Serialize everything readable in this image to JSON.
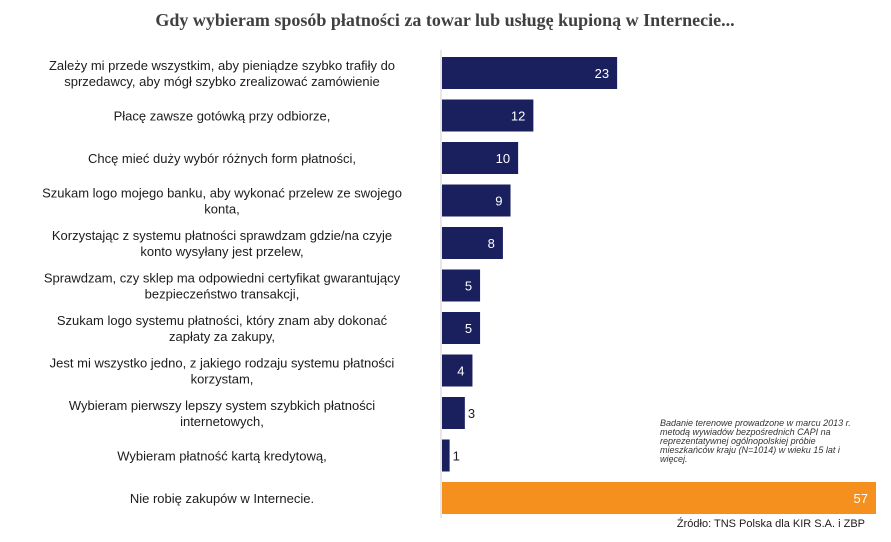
{
  "colors": {
    "primary": "#1a1f5e",
    "highlight": "#f5901e"
  },
  "note": "Badanie terenowe prowadzone w marcu 2013 r. metodą wywiadów bezpośrednich CAPI na reprezentatywnej ogólnopolskiej próbie mieszkańców kraju (N=1014) w wieku 15 lat i więcej.",
  "source": "Źródło: TNS Polska dla KIR S.A. i ZBP",
  "chart_data": {
    "type": "bar",
    "orientation": "horizontal",
    "title": "Gdy wybieram sposób płatności za towar lub usługę kupioną w Internecie...",
    "xlim": [
      0,
      57
    ],
    "grid": false,
    "categories": [
      [
        "Zależy mi przede wszystkim, aby pieniądze szybko trafiły do",
        "sprzedawcy, aby mógł szybko zrealizować zamówienie"
      ],
      [
        "Płacę zawsze gotówką przy odbiorze,"
      ],
      [
        "Chcę mieć duży wybór różnych form płatności,"
      ],
      [
        "Szukam logo mojego banku, aby wykonać przelew ze swojego",
        "konta,"
      ],
      [
        "Korzystając z systemu płatności sprawdzam gdzie/na czyje",
        "konto wysyłany jest przelew,"
      ],
      [
        "Sprawdzam, czy sklep ma odpowiedni certyfikat gwarantujący",
        "bezpieczeństwo transakcji,"
      ],
      [
        "Szukam logo systemu płatności, który znam aby dokonać",
        "zapłaty za zakupy,"
      ],
      [
        "Jest mi wszystko jedno, z jakiego rodzaju systemu płatności",
        "korzystam,"
      ],
      [
        "Wybieram pierwszy lepszy system szybkich płatności",
        "internetowych,"
      ],
      [
        "Wybieram płatność kartą kredytową,"
      ],
      [
        "Nie robię zakupów w Internecie."
      ]
    ],
    "values": [
      23,
      12,
      10,
      9,
      8,
      5,
      5,
      4,
      3,
      1,
      57
    ],
    "bar_colors": [
      "primary",
      "primary",
      "primary",
      "primary",
      "primary",
      "primary",
      "primary",
      "primary",
      "primary",
      "primary",
      "highlight"
    ]
  }
}
